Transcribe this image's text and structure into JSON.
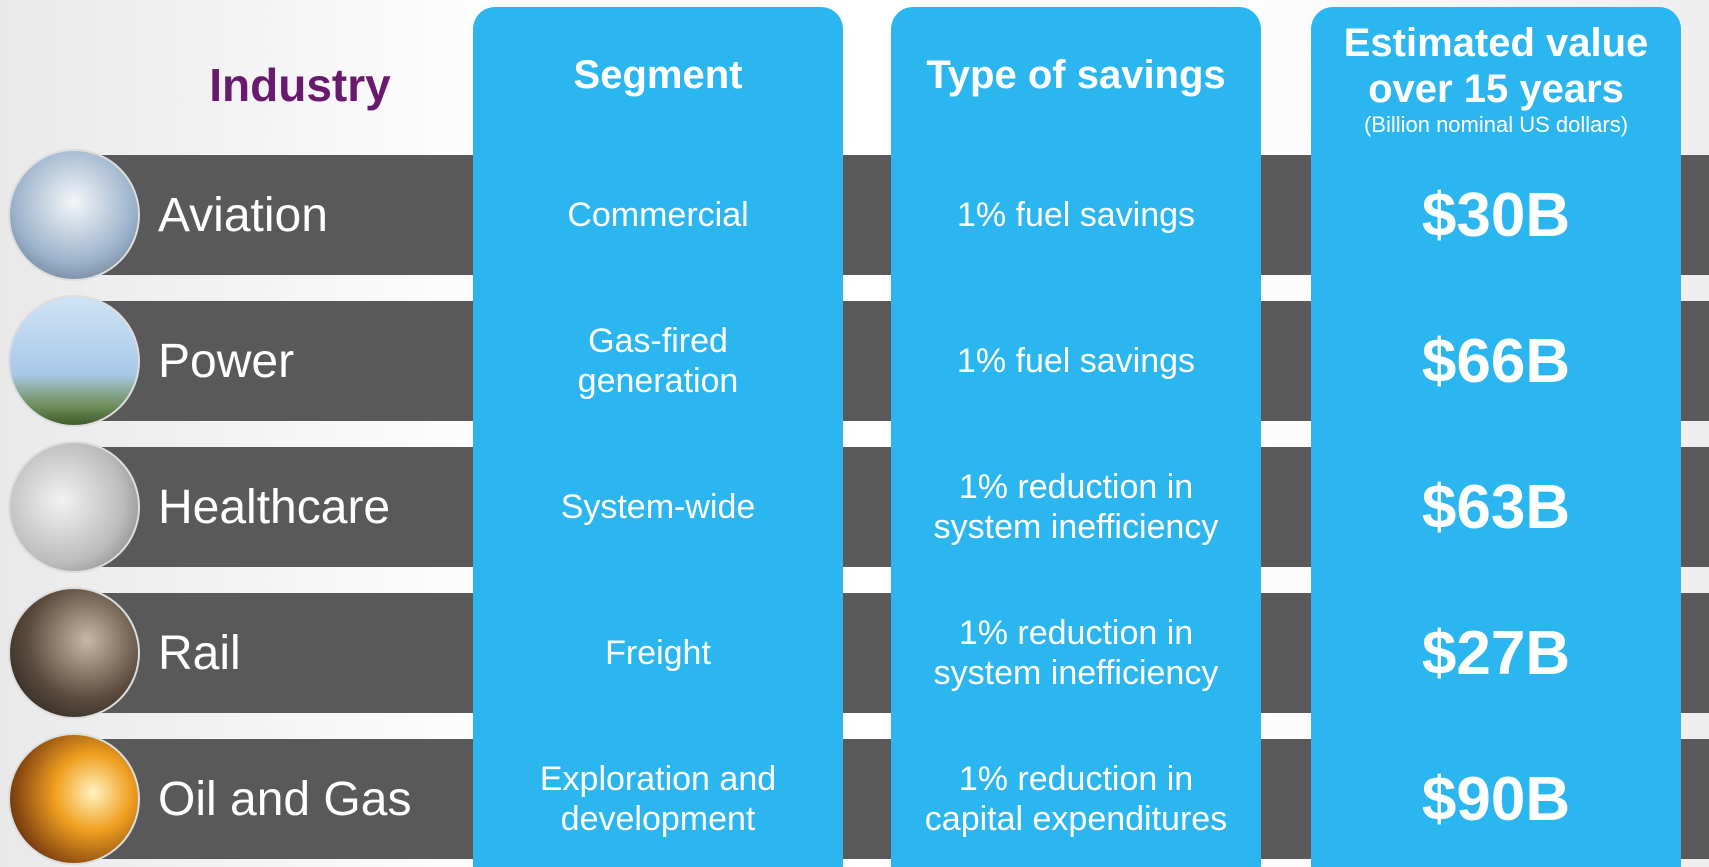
{
  "header": {
    "industry": "Industry",
    "segment": "Segment",
    "savings": "Type of savings",
    "value": [
      "Estimated value",
      "over 15 years"
    ],
    "value_note": "(Billion nominal US dollars)"
  },
  "rows": [
    {
      "industry": "Aviation",
      "segment": [
        "Commercial"
      ],
      "savings": [
        "1% fuel savings"
      ],
      "value": "$30B"
    },
    {
      "industry": "Power",
      "segment": [
        "Gas-fired",
        "generation"
      ],
      "savings": [
        "1% fuel savings"
      ],
      "value": "$66B"
    },
    {
      "industry": "Healthcare",
      "segment": [
        "System-wide"
      ],
      "savings": [
        "1% reduction in",
        "system inefficiency"
      ],
      "value": "$63B"
    },
    {
      "industry": "Rail",
      "segment": [
        "Freight"
      ],
      "savings": [
        "1% reduction in",
        "system inefficiency"
      ],
      "value": "$27B"
    },
    {
      "industry": "Oil and Gas",
      "segment": [
        "Exploration and",
        "development"
      ],
      "savings": [
        "1% reduction in",
        "capital expenditures"
      ],
      "value": "$90B"
    }
  ]
}
